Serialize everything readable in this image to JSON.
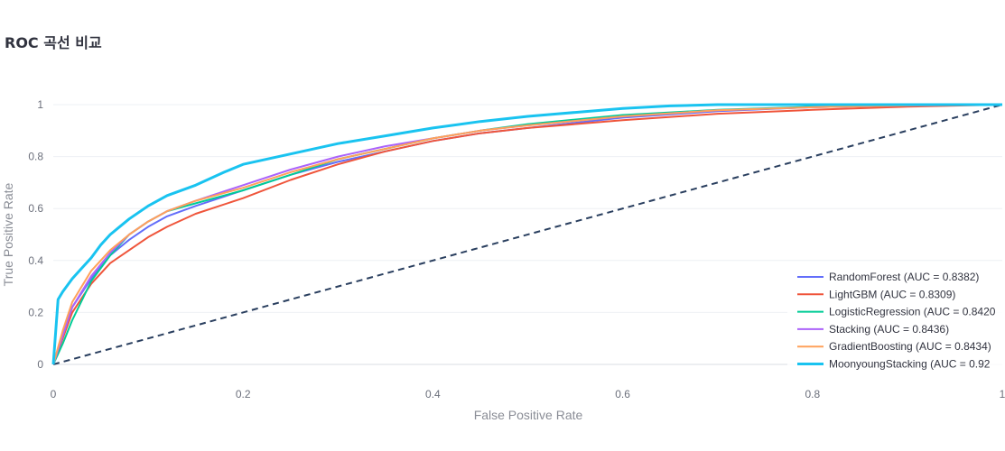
{
  "chart_title": "ROC 곡선 비교",
  "chart_data": {
    "type": "line",
    "title": "ROC 곡선 비교",
    "xlabel": "False Positive Rate",
    "ylabel": "True Positive Rate",
    "xlim": [
      0,
      1
    ],
    "ylim": [
      0,
      1
    ],
    "xticks": [
      "0",
      "0.2",
      "0.4",
      "0.6",
      "0.8",
      "1"
    ],
    "yticks": [
      "0",
      "0.2",
      "0.4",
      "0.6",
      "0.8",
      "1"
    ],
    "grid": true,
    "legend_position": "bottom-right",
    "series": [
      {
        "name": "RandomForest (AUC = 0.8382)",
        "color": "#636efa",
        "x": [
          0,
          0.01,
          0.02,
          0.04,
          0.06,
          0.08,
          0.1,
          0.12,
          0.15,
          0.2,
          0.25,
          0.3,
          0.35,
          0.4,
          0.45,
          0.5,
          0.6,
          0.7,
          0.8,
          0.9,
          1
        ],
        "y": [
          0,
          0.12,
          0.22,
          0.33,
          0.42,
          0.48,
          0.53,
          0.57,
          0.61,
          0.67,
          0.73,
          0.78,
          0.82,
          0.86,
          0.89,
          0.91,
          0.95,
          0.975,
          0.99,
          0.997,
          1
        ]
      },
      {
        "name": "LightGBM (AUC = 0.8309)",
        "color": "#ef553b",
        "x": [
          0,
          0.01,
          0.02,
          0.04,
          0.06,
          0.08,
          0.1,
          0.12,
          0.15,
          0.2,
          0.25,
          0.3,
          0.35,
          0.4,
          0.45,
          0.5,
          0.6,
          0.7,
          0.8,
          0.9,
          1
        ],
        "y": [
          0,
          0.1,
          0.2,
          0.31,
          0.39,
          0.44,
          0.49,
          0.53,
          0.58,
          0.64,
          0.71,
          0.77,
          0.82,
          0.86,
          0.89,
          0.91,
          0.94,
          0.965,
          0.98,
          0.992,
          1
        ]
      },
      {
        "name": "LogisticRegression (AUC = 0.8420",
        "color": "#00cc96",
        "x": [
          0,
          0.01,
          0.02,
          0.04,
          0.06,
          0.08,
          0.1,
          0.12,
          0.15,
          0.2,
          0.25,
          0.3,
          0.35,
          0.4,
          0.45,
          0.5,
          0.6,
          0.7,
          0.8,
          0.9,
          1
        ],
        "y": [
          0,
          0.08,
          0.17,
          0.32,
          0.42,
          0.5,
          0.55,
          0.59,
          0.62,
          0.67,
          0.73,
          0.79,
          0.83,
          0.87,
          0.9,
          0.925,
          0.96,
          0.98,
          0.992,
          0.998,
          1
        ]
      },
      {
        "name": "Stacking (AUC = 0.8436)",
        "color": "#ab63fa",
        "x": [
          0,
          0.01,
          0.02,
          0.04,
          0.06,
          0.08,
          0.1,
          0.12,
          0.15,
          0.2,
          0.25,
          0.3,
          0.35,
          0.4,
          0.45,
          0.5,
          0.6,
          0.7,
          0.8,
          0.9,
          1
        ],
        "y": [
          0,
          0.11,
          0.22,
          0.34,
          0.43,
          0.5,
          0.55,
          0.59,
          0.63,
          0.69,
          0.75,
          0.8,
          0.84,
          0.87,
          0.9,
          0.92,
          0.955,
          0.978,
          0.99,
          0.997,
          1
        ]
      },
      {
        "name": "GradientBoosting (AUC = 0.8434)",
        "color": "#ffa15a",
        "x": [
          0,
          0.01,
          0.02,
          0.04,
          0.06,
          0.08,
          0.1,
          0.12,
          0.15,
          0.2,
          0.25,
          0.3,
          0.35,
          0.4,
          0.45,
          0.5,
          0.6,
          0.7,
          0.8,
          0.9,
          1
        ],
        "y": [
          0,
          0.13,
          0.24,
          0.36,
          0.44,
          0.5,
          0.55,
          0.59,
          0.63,
          0.68,
          0.74,
          0.79,
          0.83,
          0.87,
          0.9,
          0.92,
          0.955,
          0.978,
          0.99,
          0.997,
          1
        ]
      },
      {
        "name": "MoonyoungStacking (AUC = 0.92",
        "color": "#19c3f0",
        "width": 3,
        "x": [
          0,
          0.005,
          0.01,
          0.02,
          0.03,
          0.04,
          0.05,
          0.06,
          0.08,
          0.1,
          0.12,
          0.15,
          0.18,
          0.2,
          0.25,
          0.3,
          0.35,
          0.4,
          0.45,
          0.5,
          0.55,
          0.6,
          0.65,
          0.7,
          0.8,
          0.9,
          1
        ],
        "y": [
          0,
          0.25,
          0.28,
          0.33,
          0.37,
          0.41,
          0.46,
          0.5,
          0.56,
          0.61,
          0.65,
          0.69,
          0.74,
          0.77,
          0.81,
          0.85,
          0.88,
          0.91,
          0.935,
          0.955,
          0.97,
          0.985,
          0.995,
          1,
          1,
          1,
          1
        ]
      },
      {
        "name": "",
        "color": "#2a3f5f",
        "dash": true,
        "x": [
          0,
          1
        ],
        "y": [
          0,
          1
        ]
      }
    ]
  }
}
